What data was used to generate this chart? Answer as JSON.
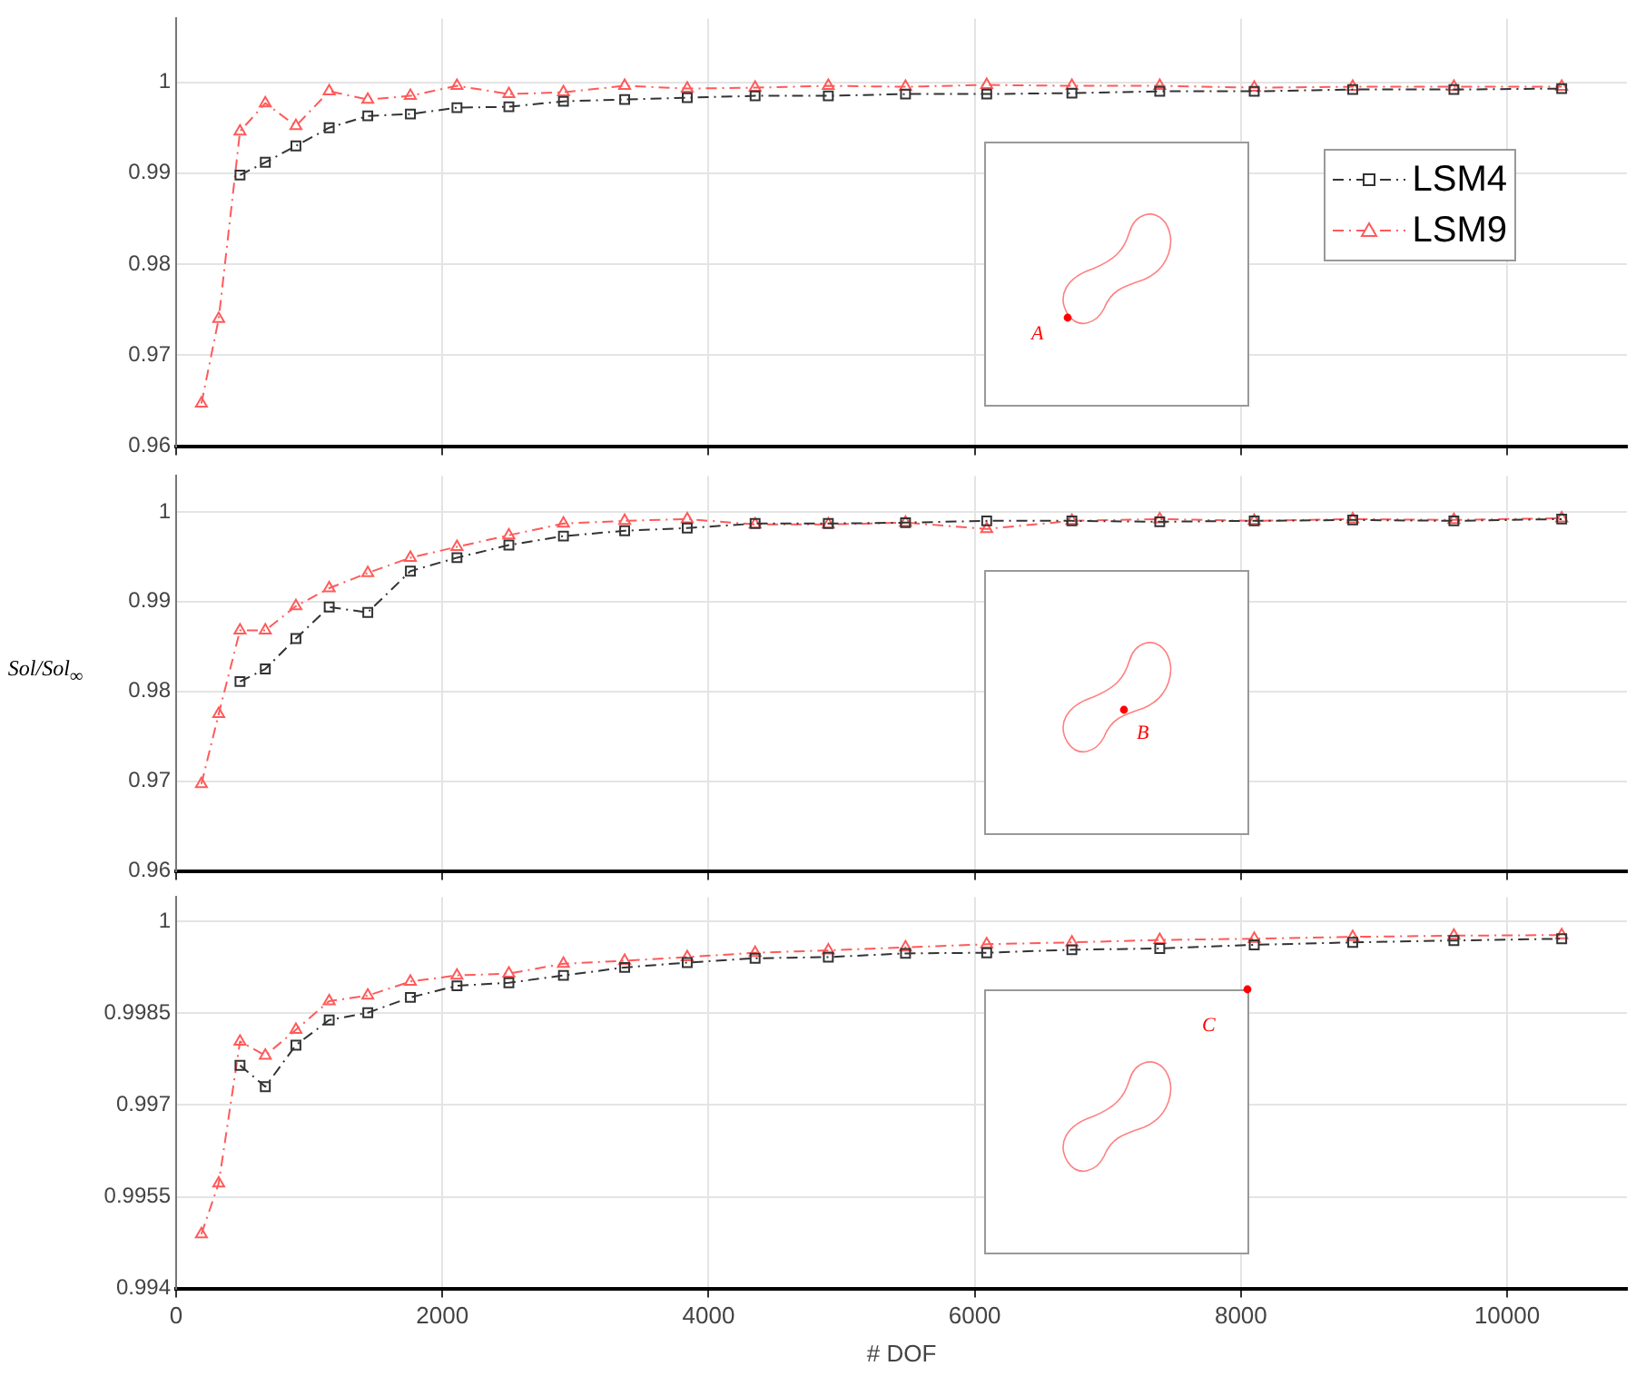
{
  "chart_data": [
    {
      "type": "line",
      "x": [
        190,
        320,
        480,
        670,
        900,
        1150,
        1440,
        1760,
        2110,
        2500,
        2910,
        3370,
        3840,
        4350,
        4900,
        5480,
        6090,
        6730,
        7390,
        8100,
        8840,
        9600,
        10410
      ],
      "series": [
        {
          "name": "LSM4",
          "color": "#333333",
          "marker": "square",
          "line_style": "dashed",
          "values": [
            null,
            null,
            0.9898,
            0.9912,
            0.993,
            0.995,
            0.9963,
            0.9965,
            0.9972,
            0.9973,
            0.9979,
            0.9981,
            0.9983,
            0.9985,
            0.9985,
            0.9987,
            0.9987,
            0.9988,
            0.999,
            0.999,
            0.9992,
            0.9992,
            0.9993
          ]
        },
        {
          "name": "LSM9",
          "color": "#ff5a5a",
          "marker": "triangle",
          "line_style": "dashed",
          "values": [
            0.9647,
            0.974,
            0.9946,
            0.9977,
            0.9952,
            0.999,
            0.9981,
            0.9985,
            0.9996,
            0.9987,
            0.9989,
            0.9996,
            0.9993,
            0.9994,
            0.9996,
            0.9995,
            0.9997,
            0.9996,
            0.9996,
            0.9994,
            0.9995,
            0.9995,
            0.9995
          ]
        }
      ],
      "xlim": [
        0,
        10900
      ],
      "xticks": [
        0,
        2000,
        4000,
        6000,
        8000,
        10000
      ],
      "ylim": [
        0.96,
        1.007
      ],
      "yticks": [
        0.96,
        0.97,
        0.98,
        0.99,
        1
      ],
      "grid": true,
      "legend": "top right",
      "tick_labels": "y",
      "annotations": [
        "A"
      ]
    },
    {
      "type": "line",
      "x": [
        190,
        320,
        480,
        670,
        900,
        1150,
        1440,
        1760,
        2110,
        2500,
        2910,
        3370,
        3840,
        4350,
        4900,
        5480,
        6090,
        6730,
        7390,
        8100,
        8840,
        9600,
        10410
      ],
      "series": [
        {
          "color": "#333333",
          "marker": "square",
          "line_style": "dashed",
          "values": [
            null,
            null,
            0.9811,
            0.9825,
            0.9859,
            0.9894,
            0.9888,
            0.9934,
            0.9949,
            0.9963,
            0.9973,
            0.9979,
            0.9982,
            0.9987,
            0.9987,
            0.9988,
            0.999,
            0.999,
            0.9989,
            0.999,
            0.9991,
            0.999,
            0.9992
          ]
        },
        {
          "color": "#ff5a5a",
          "marker": "triangle",
          "line_style": "dashed",
          "values": [
            0.9697,
            0.9775,
            0.9868,
            0.9868,
            0.9895,
            0.9915,
            0.9932,
            0.9949,
            0.9961,
            0.9974,
            0.9987,
            0.999,
            0.9992,
            0.9986,
            0.9986,
            0.9988,
            0.9981,
            0.999,
            0.9992,
            0.999,
            0.9992,
            0.9991,
            0.9993
          ]
        }
      ],
      "xlim": [
        0,
        10900
      ],
      "xticks": [
        0,
        2000,
        4000,
        6000,
        8000,
        10000
      ],
      "ylim": [
        0.96,
        1.004
      ],
      "yticks": [
        0.96,
        0.97,
        0.98,
        0.99,
        1
      ],
      "ylabel": "Sol/Sol$_{∞}$",
      "grid": true,
      "tick_labels": "y",
      "annotations": [
        "B"
      ]
    },
    {
      "type": "line",
      "x": [
        190,
        320,
        480,
        670,
        900,
        1150,
        1440,
        1760,
        2110,
        2500,
        2910,
        3370,
        3840,
        4350,
        4900,
        5480,
        6090,
        6730,
        7390,
        8100,
        8840,
        9600,
        10410
      ],
      "series": [
        {
          "color": "#333333",
          "marker": "square",
          "line_style": "dashed",
          "values": [
            null,
            null,
            0.99765,
            0.9973,
            0.99798,
            0.99839,
            0.99851,
            0.99876,
            0.99895,
            0.999,
            0.99912,
            0.99925,
            0.99933,
            0.9994,
            0.99942,
            0.99948,
            0.99949,
            0.99954,
            0.99956,
            0.99962,
            0.99966,
            0.99969,
            0.99972
          ]
        },
        {
          "color": "#ff5a5a",
          "marker": "triangle",
          "line_style": "dashed",
          "values": [
            0.99489,
            0.99572,
            0.99804,
            0.99781,
            0.99823,
            0.9987,
            0.99879,
            0.99902,
            0.99912,
            0.99915,
            0.99931,
            0.99936,
            0.99942,
            0.99949,
            0.99953,
            0.99958,
            0.99963,
            0.99966,
            0.9997,
            0.99972,
            0.99975,
            0.99977,
            0.99978
          ]
        }
      ],
      "xlim": [
        0,
        10900
      ],
      "xticks": [
        0,
        2000,
        4000,
        6000,
        8000,
        10000
      ],
      "ylim": [
        0.994,
        1.0004
      ],
      "yticks": [
        0.994,
        0.9955,
        0.997,
        0.9985,
        1
      ],
      "xlabel": "# DOF",
      "grid": true,
      "annotations": [
        "C"
      ]
    }
  ]
}
